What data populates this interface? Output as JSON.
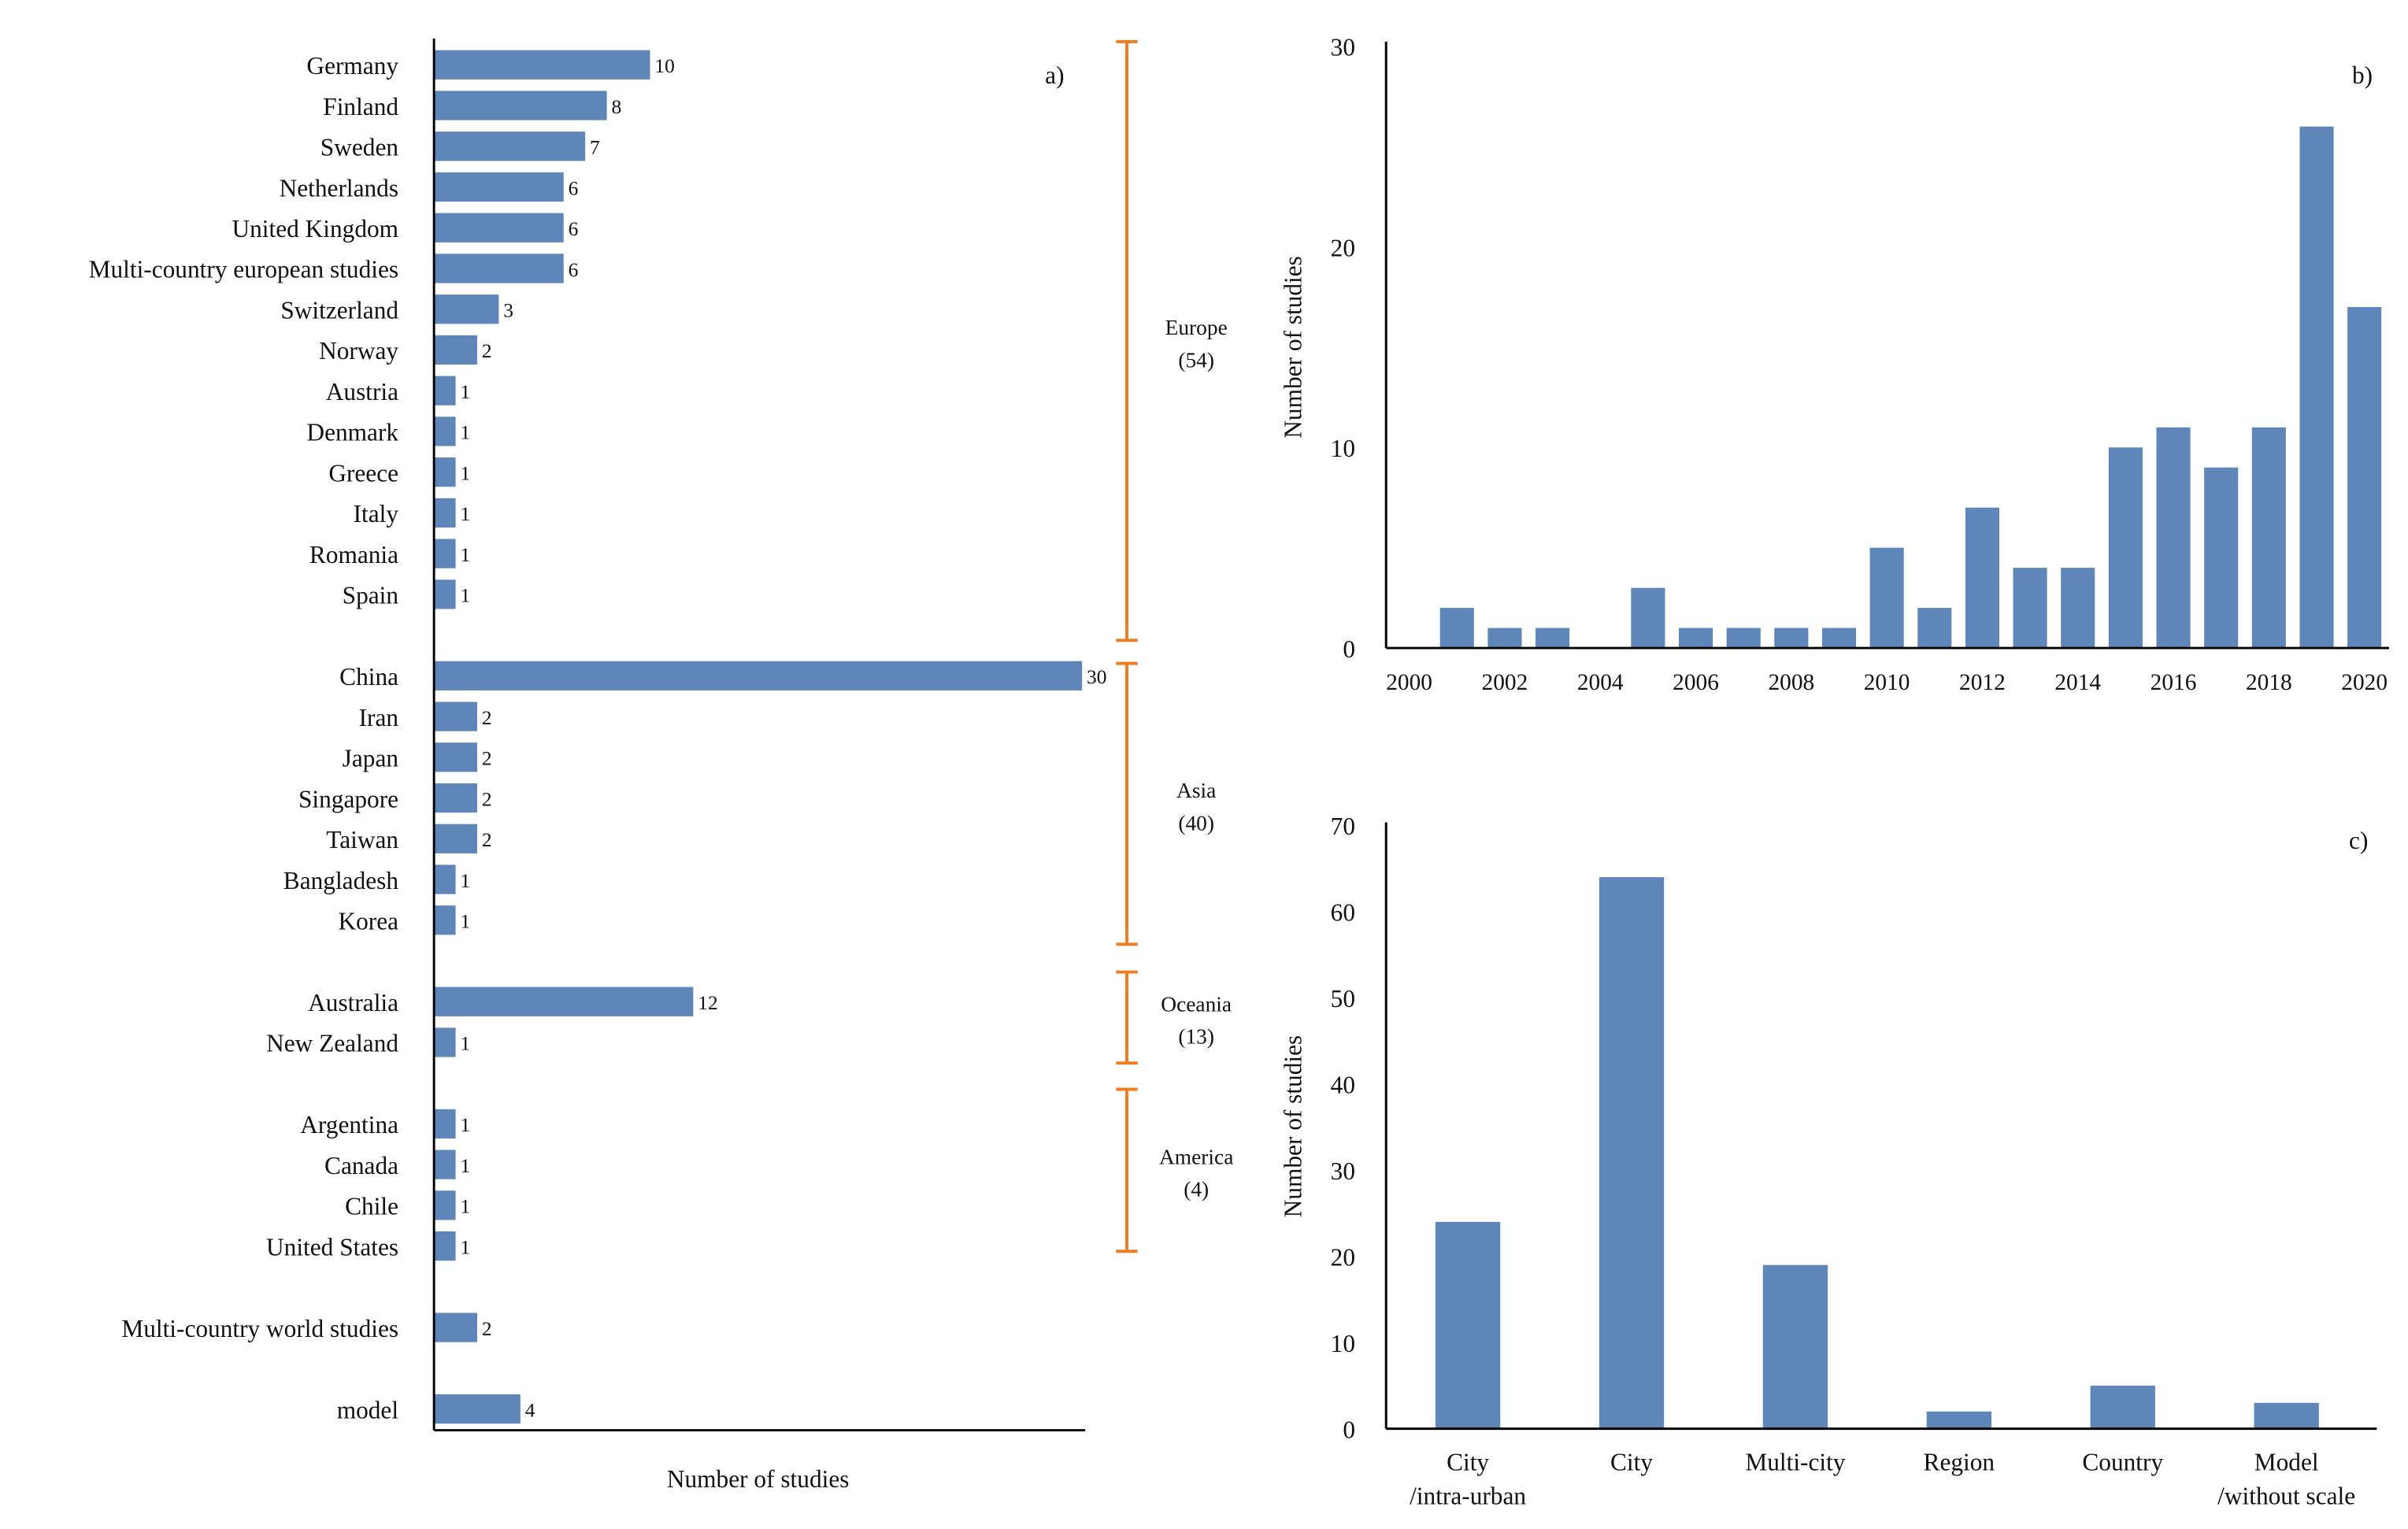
{
  "colors": {
    "bar": "#5f86b8",
    "bracket": "#f07c22",
    "axis": "#000000"
  },
  "chart_data": [
    {
      "id": "a",
      "panel_label": "a)",
      "type": "bar",
      "orientation": "horizontal",
      "xlabel": "Number of studies",
      "xlim": [
        0,
        30
      ],
      "categories": [
        "Germany",
        "Finland",
        "Sweden",
        "Netherlands",
        "United Kingdom",
        "Multi-country european studies",
        "Switzerland",
        "Norway",
        "Austria",
        "Denmark",
        "Greece",
        "Italy",
        "Romania",
        "Spain",
        "China",
        "Iran",
        "Japan",
        "Singapore",
        "Taiwan",
        "Bangladesh",
        "Korea",
        "Australia",
        "New Zealand",
        "Argentina",
        "Canada",
        "Chile",
        "United States",
        "Multi-country world studies",
        "model"
      ],
      "values": [
        10,
        8,
        7,
        6,
        6,
        6,
        3,
        2,
        1,
        1,
        1,
        1,
        1,
        1,
        30,
        2,
        2,
        2,
        2,
        1,
        1,
        12,
        1,
        1,
        1,
        1,
        1,
        2,
        4
      ],
      "groups": [
        {
          "name": "Europe",
          "total": "(54)",
          "count": 14
        },
        {
          "name": "Asia",
          "total": "(40)",
          "count": 7
        },
        {
          "name": "Oceania",
          "total": "(13)",
          "count": 2
        },
        {
          "name": "America",
          "total": "(4)",
          "count": 4
        },
        {
          "name": "",
          "total": "",
          "count": 1
        },
        {
          "name": "",
          "total": "",
          "count": 1
        }
      ]
    },
    {
      "id": "b",
      "panel_label": "b)",
      "type": "bar",
      "ylabel": "Number of studies",
      "ylim": [
        0,
        30
      ],
      "yticks": [
        0,
        10,
        20,
        30
      ],
      "categories": [
        2000,
        2001,
        2002,
        2003,
        2004,
        2005,
        2006,
        2007,
        2008,
        2009,
        2010,
        2011,
        2012,
        2013,
        2014,
        2015,
        2016,
        2017,
        2018,
        2019,
        2020
      ],
      "xtick_labels": [
        "2000",
        "2002",
        "2004",
        "2006",
        "2008",
        "2010",
        "2012",
        "2014",
        "2016",
        "2018",
        "2020"
      ],
      "values": [
        0,
        2,
        1,
        1,
        0,
        3,
        1,
        1,
        1,
        1,
        5,
        2,
        7,
        4,
        4,
        10,
        11,
        9,
        11,
        26,
        17
      ]
    },
    {
      "id": "c",
      "panel_label": "c)",
      "type": "bar",
      "ylabel": "Number of studies",
      "ylim": [
        0,
        70
      ],
      "yticks": [
        0,
        10,
        20,
        30,
        40,
        50,
        60,
        70
      ],
      "categories": [
        [
          "City",
          "/intra-urban"
        ],
        [
          "City"
        ],
        [
          "Multi-city"
        ],
        [
          "Region"
        ],
        [
          "Country"
        ],
        [
          "Model",
          "/without scale"
        ]
      ],
      "values": [
        24,
        64,
        19,
        2,
        5,
        3
      ]
    }
  ]
}
